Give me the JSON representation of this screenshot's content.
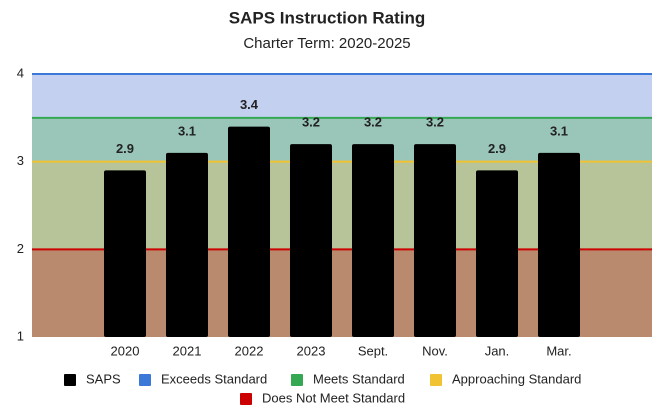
{
  "chart_data": {
    "type": "bar",
    "title": "SAPS Instruction Rating",
    "subtitle": "Charter Term:  2020-2025",
    "categories": [
      "2020",
      "2021",
      "2022",
      "2023",
      "Sept.",
      "Nov.",
      "Jan.",
      "Mar."
    ],
    "series": [
      {
        "name": "SAPS",
        "color": "#000000",
        "values": [
          2.9,
          3.1,
          3.4,
          3.2,
          3.2,
          3.2,
          2.9,
          3.1
        ]
      }
    ],
    "thresholds": [
      {
        "name": "Exceeds Standard",
        "value": 4,
        "color": "#3c78d8",
        "band_color": "#c3d0f0"
      },
      {
        "name": "Meets Standard",
        "value": 3.5,
        "color": "#34a853",
        "band_color": "#9ac6b9"
      },
      {
        "name": "Approaching Standard",
        "value": 3,
        "color": "#f1c232",
        "band_color": "#b7c499"
      },
      {
        "name": "Does Not Meet Standard",
        "value": 2,
        "color": "#cc0000",
        "band_color": "#b98a6e"
      }
    ],
    "ylim": [
      1,
      4
    ],
    "yticks": [
      1,
      2,
      3,
      4
    ]
  }
}
